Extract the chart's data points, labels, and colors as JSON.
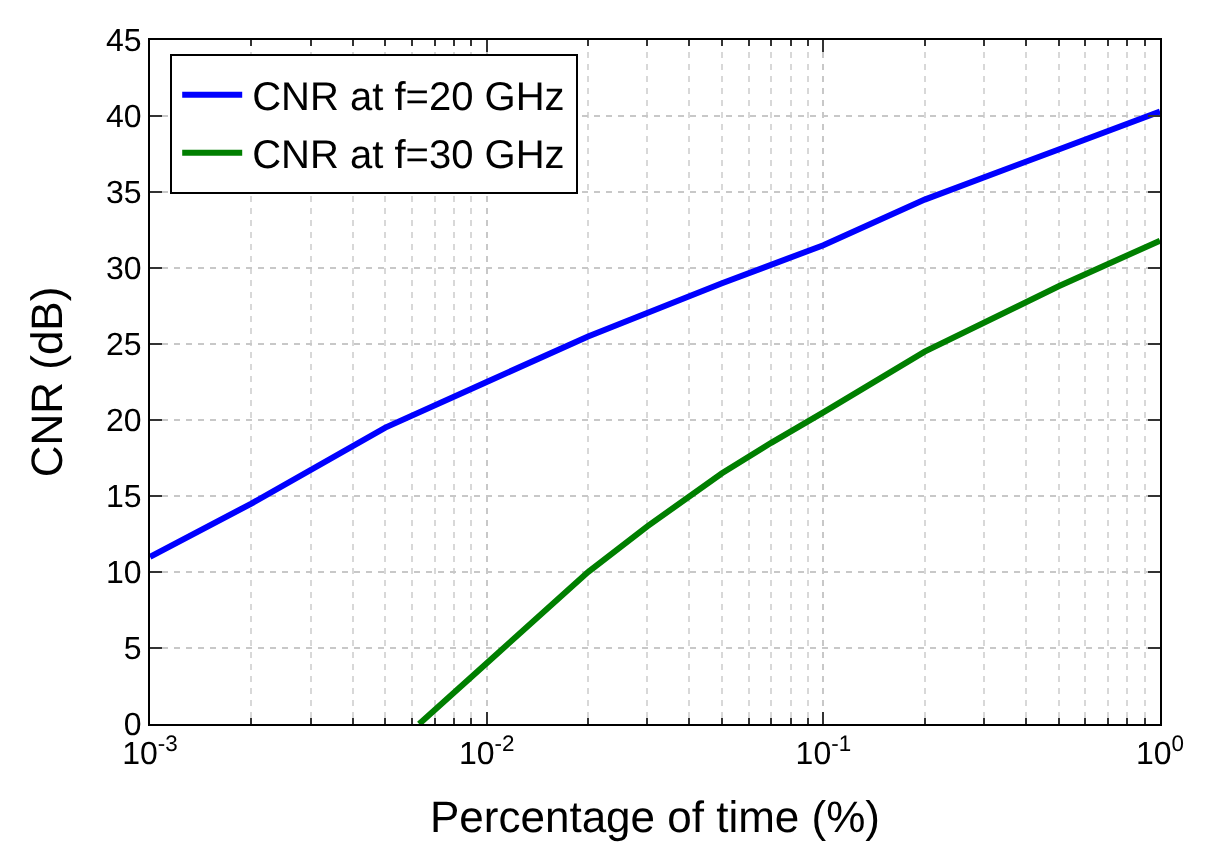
{
  "chart_data": {
    "type": "line",
    "xlabel": "Percentage of time (%)",
    "ylabel": "CNR (dB)",
    "log": "x",
    "xlim": [
      0.001,
      1
    ],
    "xticks": [
      {
        "value": 0.001,
        "label": "10$^{-3}$"
      },
      {
        "value": 0.01,
        "label": "10$^{-2}$"
      },
      {
        "value": 0.1,
        "label": "10$^{-1}$"
      },
      {
        "value": 1,
        "label": "10$^{0}$"
      }
    ],
    "ylim": [
      0,
      45
    ],
    "yticks": [
      0,
      5,
      10,
      15,
      20,
      25,
      30,
      35,
      40,
      45
    ],
    "grid": true,
    "legend": "top left",
    "line_style": "solid",
    "marker": "none",
    "series": [
      {
        "name": "CNR at f=20 GHz",
        "color": "#0000ff",
        "x": [
          0.001,
          0.002,
          0.005,
          0.01,
          0.02,
          0.05,
          0.1,
          0.2,
          0.5,
          1
        ],
        "values": [
          11,
          14.5,
          19.5,
          22.5,
          25.5,
          29,
          31.5,
          34.5,
          37.8,
          40.3
        ]
      },
      {
        "name": "CNR at f=30 GHz",
        "color": "#007f00",
        "x": [
          0.0063,
          0.01,
          0.02,
          0.03,
          0.05,
          0.07,
          0.1,
          0.2,
          0.5,
          1
        ],
        "values": [
          0,
          4,
          10,
          13,
          16.5,
          18.5,
          20.5,
          24.5,
          28.8,
          31.8
        ]
      }
    ]
  }
}
